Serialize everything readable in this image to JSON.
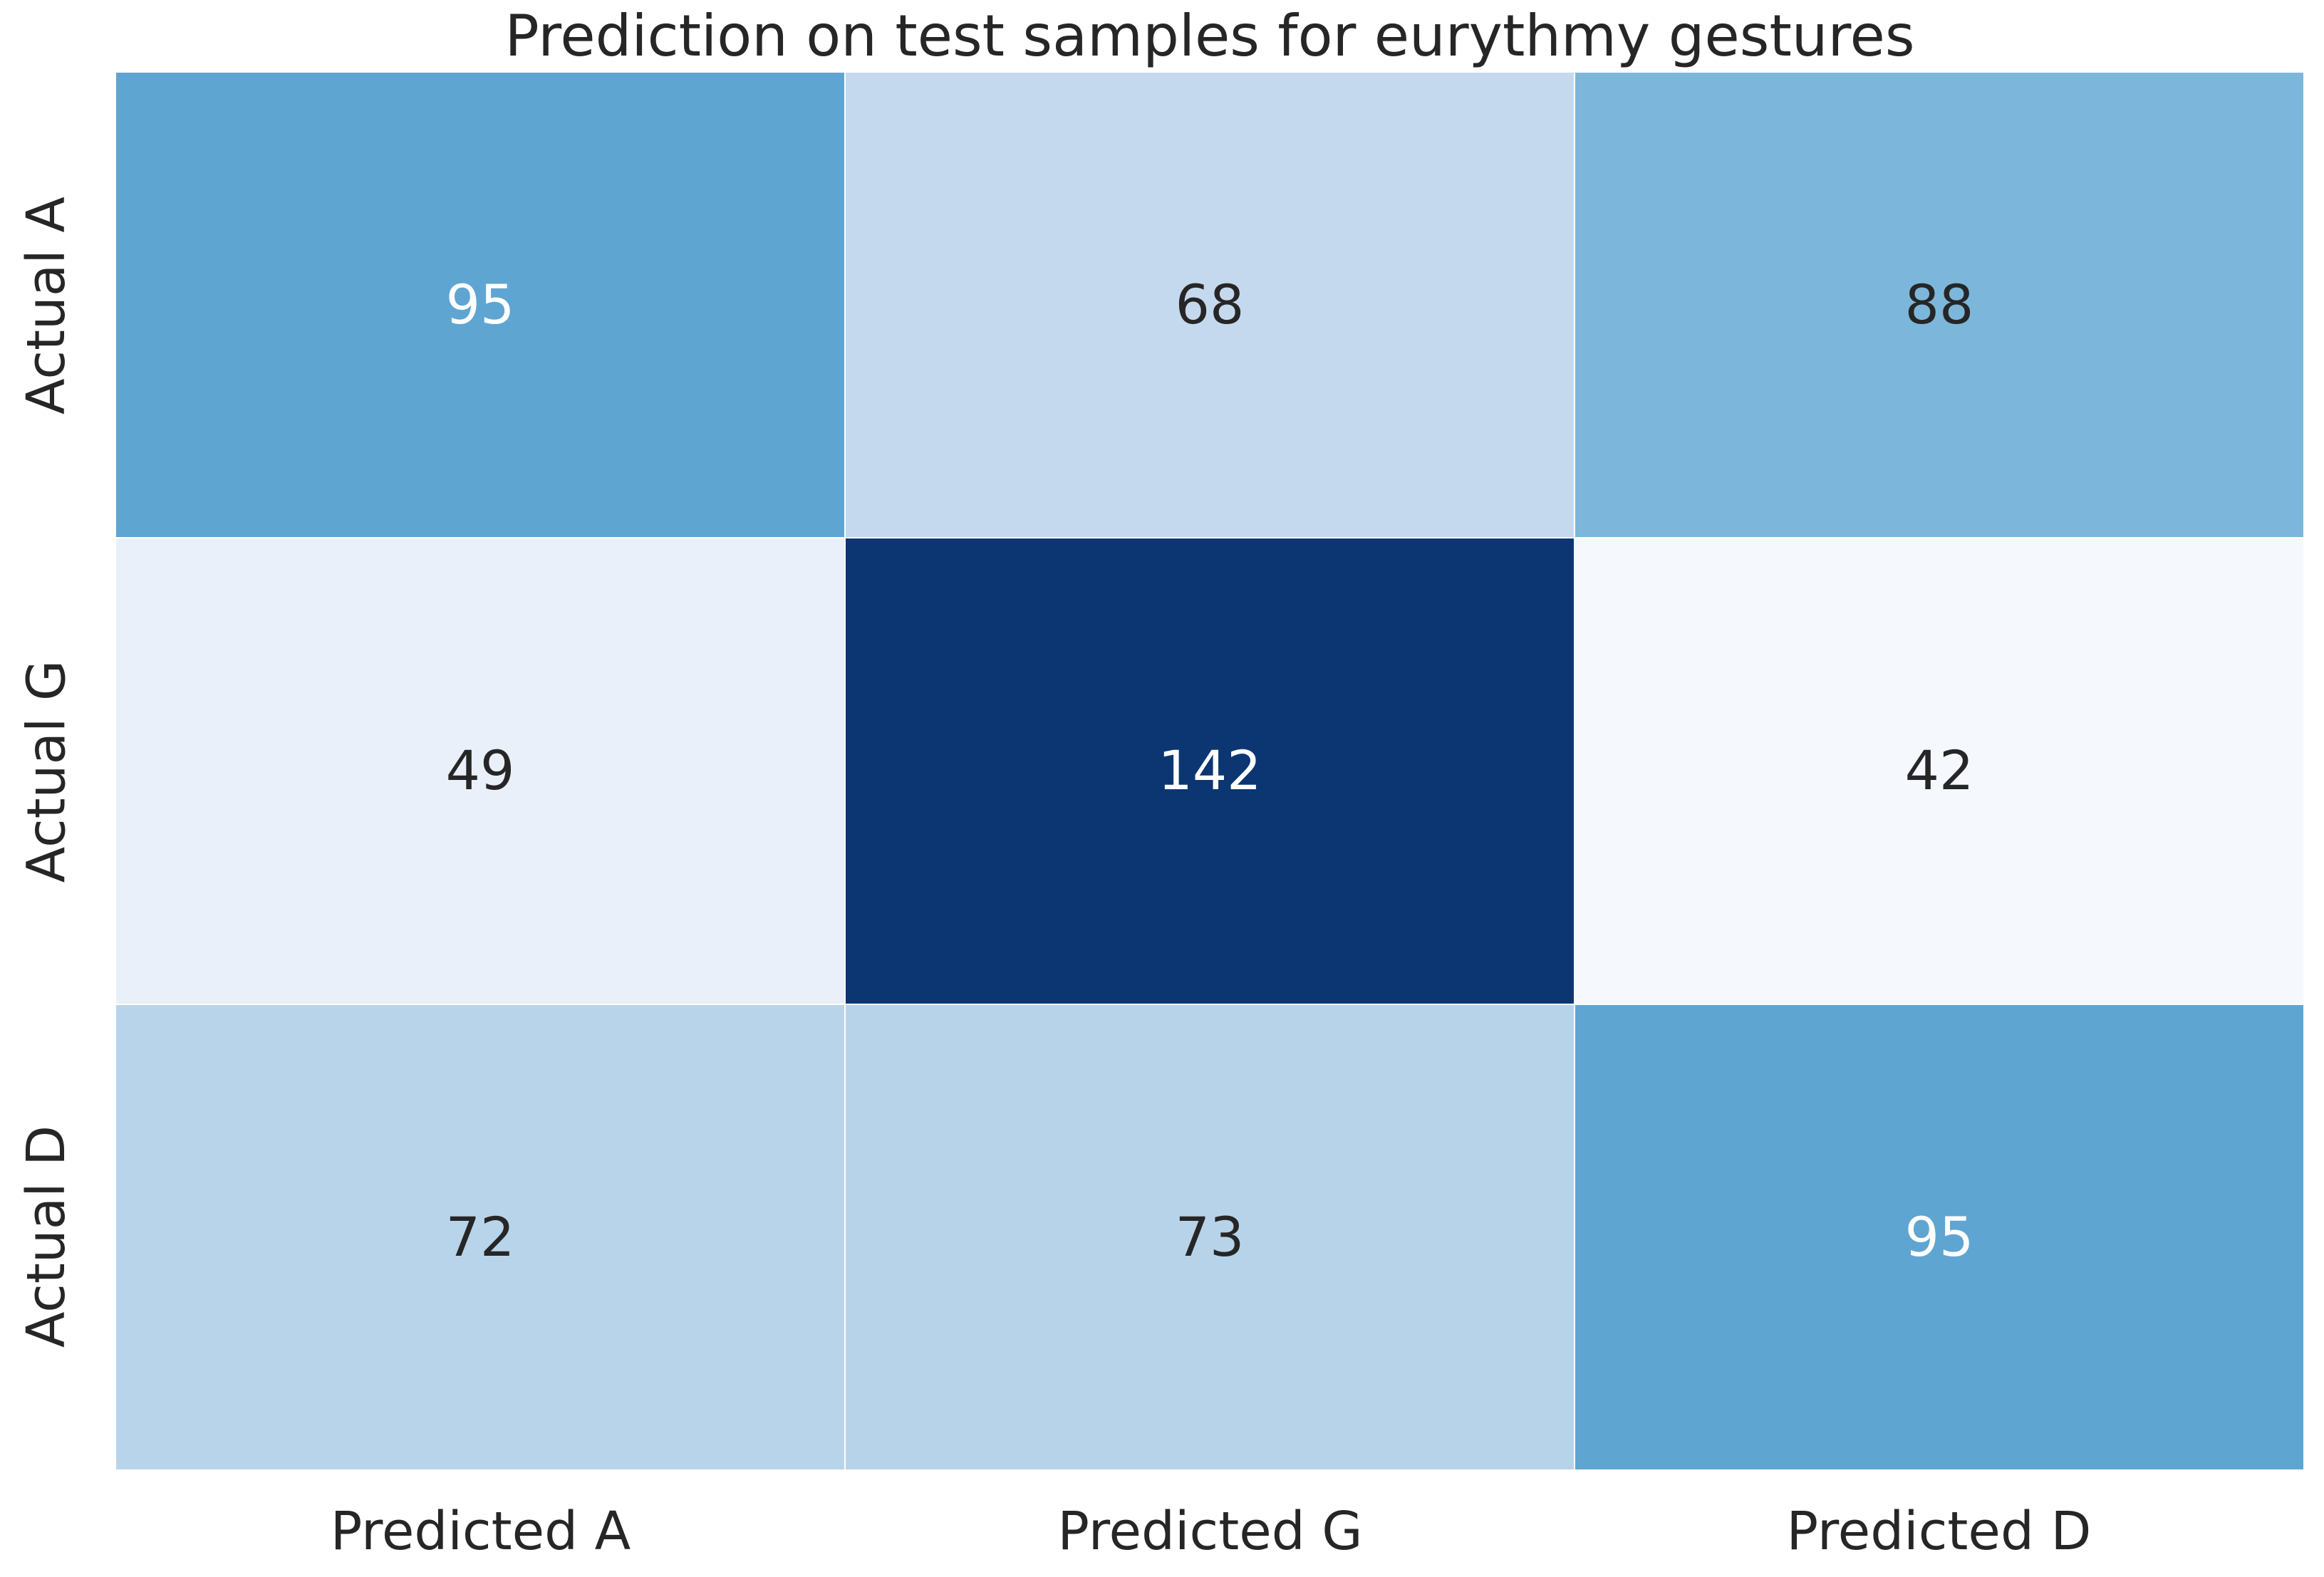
{
  "chart_data": {
    "type": "heatmap",
    "title": "Prediction on test samples for eurythmy gestures",
    "rows": [
      "Actual A",
      "Actual G",
      "Actual D"
    ],
    "columns": [
      "Predicted A",
      "Predicted G",
      "Predicted D"
    ],
    "values": [
      [
        95,
        68,
        88
      ],
      [
        49,
        142,
        42
      ],
      [
        72,
        73,
        95
      ]
    ],
    "cell_colors": [
      [
        "#5fa5d2",
        "#c5d9ee",
        "#7cb7db"
      ],
      [
        "#e9f0fa",
        "#0b3671",
        "#f5f9fd"
      ],
      [
        "#b8d4ea",
        "#b7d3e9",
        "#5fa5d2"
      ]
    ],
    "text_colors": [
      [
        "#ffffff",
        "#262626",
        "#262626"
      ],
      [
        "#262626",
        "#ffffff",
        "#262626"
      ],
      [
        "#262626",
        "#262626",
        "#ffffff"
      ]
    ],
    "colormap": "Blues",
    "grid_line_color": "#ffffff",
    "background_color": "#ffffff",
    "legend": "none",
    "layout": {
      "annotated": true,
      "row_axis_side": "left",
      "column_axis_side": "bottom"
    }
  }
}
